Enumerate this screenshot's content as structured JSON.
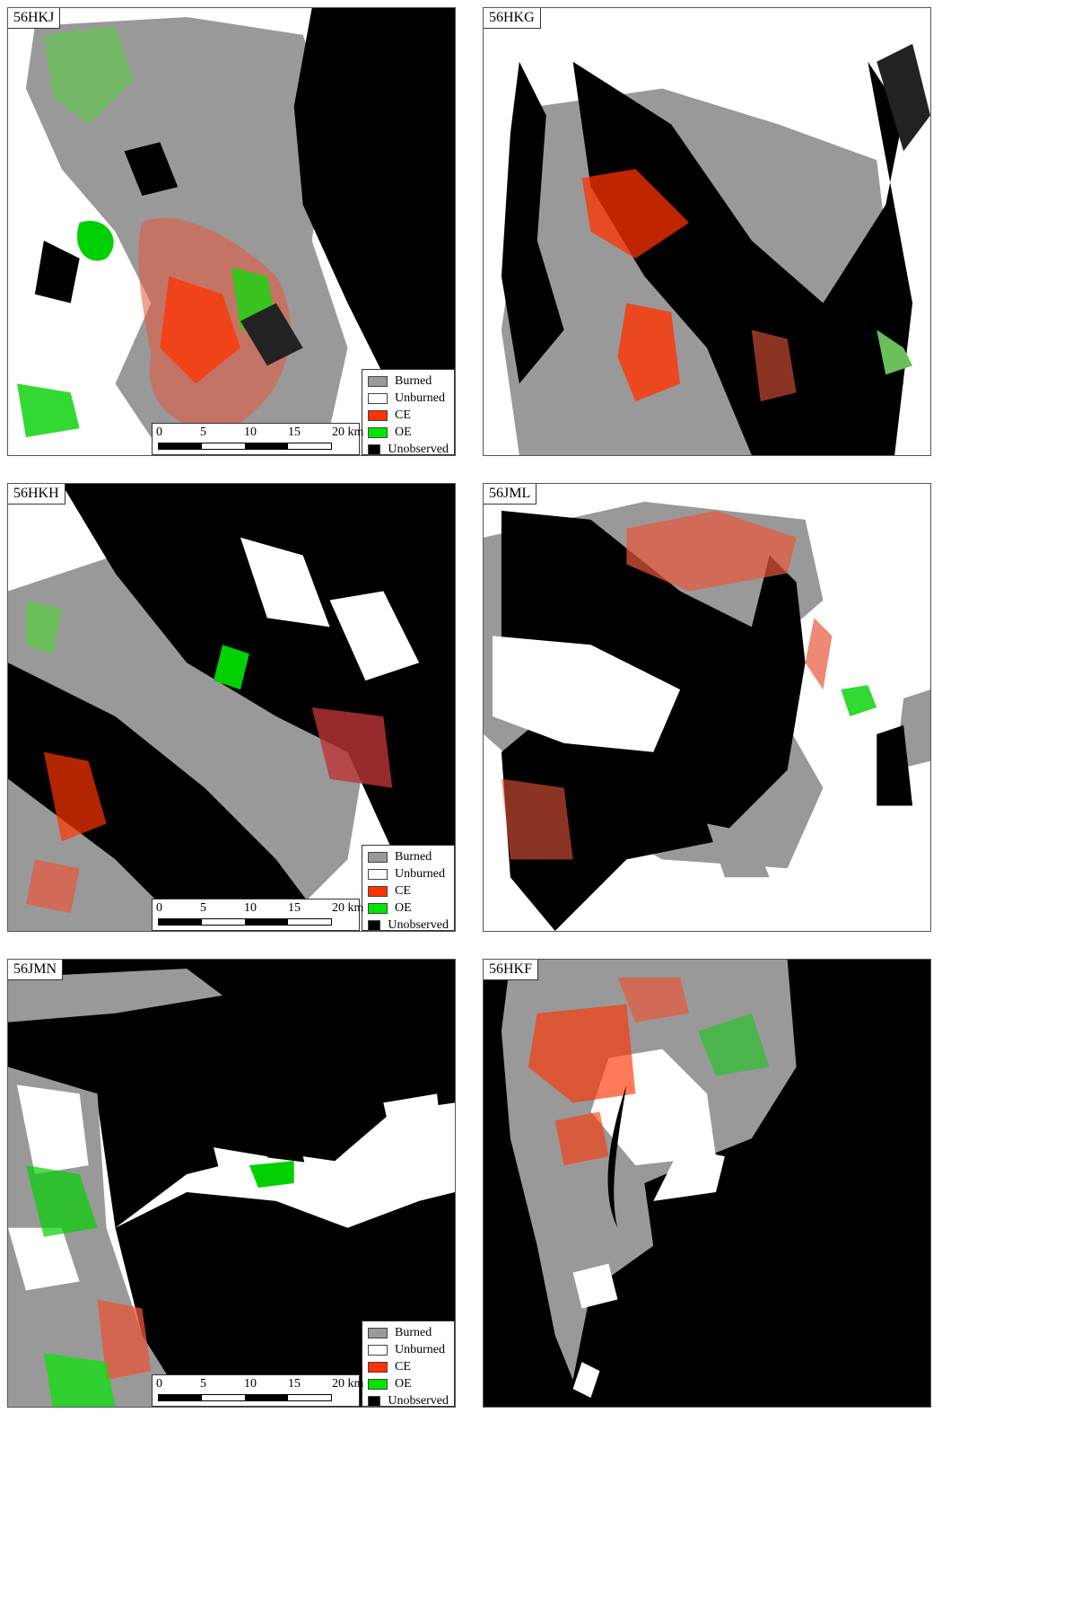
{
  "legend": {
    "items": [
      {
        "label": "Burned",
        "color": "#999999"
      },
      {
        "label": "Unburned",
        "color": "#ffffff"
      },
      {
        "label": "CE",
        "color": "#ff3300"
      },
      {
        "label": "OE",
        "color": "#00e600"
      },
      {
        "label": "Unobserved",
        "color": "#000000"
      }
    ]
  },
  "scalebar": {
    "ticks": [
      "0",
      "5",
      "10",
      "15",
      "20 km"
    ]
  },
  "panels": [
    {
      "tile": "56HKJ",
      "has_legend": true
    },
    {
      "tile": "56HKG",
      "has_legend": false
    },
    {
      "tile": "56HKH",
      "has_legend": true
    },
    {
      "tile": "56JML",
      "has_legend": false
    },
    {
      "tile": "56JMN",
      "has_legend": true
    },
    {
      "tile": "56HKF",
      "has_legend": false
    }
  ]
}
